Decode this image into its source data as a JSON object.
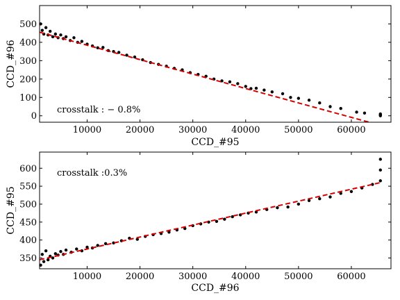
{
  "chart_data": [
    {
      "type": "scatter",
      "xlabel": "CCD_#95",
      "ylabel": "CCD_#96",
      "annotation": "crosstalk : − 0.8%",
      "xlim": [
        1000,
        67500
      ],
      "ylim": [
        -35,
        600
      ],
      "xticks": [
        10000,
        20000,
        30000,
        40000,
        50000,
        60000
      ],
      "yticks": [
        0,
        100,
        200,
        300,
        400,
        500
      ],
      "xtick_labels": [
        "10000",
        "20000",
        "30000",
        "40000",
        "50000",
        "60000"
      ],
      "ytick_labels": [
        "0",
        "100",
        "200",
        "300",
        "400",
        "500"
      ],
      "fit_line": {
        "x": [
          1000,
          64000
        ],
        "y": [
          455,
          -40
        ],
        "color": "#d40000",
        "style": "dashed"
      },
      "point_color": "#000000",
      "points": {
        "x": [
          1200,
          1500,
          1800,
          2200,
          2600,
          3000,
          3500,
          4000,
          4500,
          5000,
          5500,
          6000,
          6800,
          7500,
          8200,
          9000,
          10000,
          11000,
          12000,
          13000,
          14000,
          15000,
          16000,
          17500,
          19000,
          20500,
          22000,
          23500,
          25000,
          26500,
          28000,
          29500,
          31000,
          32500,
          34000,
          35500,
          37000,
          38500,
          40000,
          41000,
          42000,
          43500,
          45000,
          47000,
          48500,
          50000,
          52000,
          54000,
          56000,
          58000,
          61000,
          62500,
          65500,
          65500,
          65500
        ],
        "y": [
          500,
          465,
          445,
          480,
          440,
          460,
          430,
          445,
          425,
          440,
          420,
          430,
          410,
          425,
          400,
          405,
          390,
          380,
          370,
          372,
          355,
          350,
          345,
          330,
          320,
          305,
          290,
          280,
          270,
          258,
          250,
          235,
          225,
          215,
          200,
          190,
          185,
          175,
          160,
          148,
          150,
          140,
          130,
          120,
          100,
          95,
          85,
          70,
          50,
          40,
          20,
          15,
          0,
          5,
          10
        ]
      }
    },
    {
      "type": "scatter",
      "xlabel": "CCD_#96",
      "ylabel": "CCD_#95",
      "annotation": "crosstalk :0.3%",
      "xlim": [
        1000,
        67500
      ],
      "ylim": [
        320,
        645
      ],
      "xticks": [
        10000,
        20000,
        30000,
        40000,
        50000,
        60000
      ],
      "yticks": [
        350,
        400,
        450,
        500,
        550,
        600
      ],
      "xtick_labels": [
        "10000",
        "20000",
        "30000",
        "40000",
        "50000",
        "60000"
      ],
      "ytick_labels": [
        "350",
        "400",
        "450",
        "500",
        "550",
        "600"
      ],
      "fit_line": {
        "x": [
          1000,
          65500
        ],
        "y": [
          345,
          560
        ],
        "color": "#d40000",
        "style": "dashed"
      },
      "point_color": "#000000",
      "points": {
        "x": [
          1200,
          1500,
          1800,
          2200,
          2600,
          3000,
          3500,
          4000,
          4500,
          5000,
          5500,
          6000,
          7000,
          8000,
          9000,
          10000,
          11000,
          12000,
          13500,
          15000,
          16500,
          18000,
          19500,
          21000,
          22500,
          24000,
          25500,
          27000,
          28500,
          30000,
          31500,
          33000,
          34500,
          36000,
          37500,
          39000,
          40500,
          42000,
          44000,
          46000,
          48000,
          50000,
          52000,
          54000,
          56000,
          58000,
          60000,
          62000,
          64000,
          65500,
          65500,
          65500
        ],
        "y": [
          330,
          360,
          340,
          370,
          345,
          355,
          350,
          362,
          358,
          368,
          360,
          372,
          366,
          375,
          370,
          380,
          378,
          385,
          390,
          392,
          398,
          405,
          402,
          410,
          415,
          418,
          422,
          428,
          432,
          440,
          445,
          450,
          452,
          458,
          465,
          470,
          475,
          478,
          485,
          490,
          492,
          500,
          510,
          515,
          520,
          530,
          535,
          545,
          555,
          565,
          595,
          625
        ]
      }
    }
  ]
}
